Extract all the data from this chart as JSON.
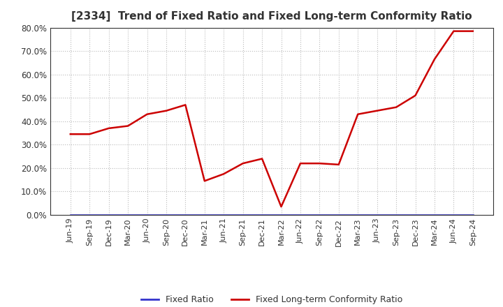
{
  "title": "[2334]  Trend of Fixed Ratio and Fixed Long-term Conformity Ratio",
  "x_labels": [
    "Jun-19",
    "Sep-19",
    "Dec-19",
    "Mar-20",
    "Jun-20",
    "Sep-20",
    "Dec-20",
    "Mar-21",
    "Jun-21",
    "Sep-21",
    "Dec-21",
    "Mar-22",
    "Jun-22",
    "Sep-22",
    "Dec-22",
    "Mar-23",
    "Jun-23",
    "Sep-23",
    "Dec-23",
    "Mar-24",
    "Jun-24",
    "Sep-24"
  ],
  "fixed_ratio": [
    0,
    0,
    0,
    0,
    0,
    0,
    0,
    0,
    0,
    0,
    0,
    0,
    0,
    0,
    0,
    0,
    0,
    0,
    0,
    0,
    0,
    0
  ],
  "fixed_lt_ratio": [
    0.345,
    0.345,
    0.37,
    0.38,
    0.43,
    0.445,
    0.47,
    0.145,
    0.175,
    0.22,
    0.24,
    0.035,
    0.22,
    0.22,
    0.215,
    0.43,
    0.445,
    0.46,
    0.51,
    0.665,
    0.785,
    0.785
  ],
  "ylim": [
    0.0,
    0.8
  ],
  "yticks": [
    0.0,
    0.1,
    0.2,
    0.3,
    0.4,
    0.5,
    0.6,
    0.7,
    0.8
  ],
  "fixed_ratio_color": "#3333cc",
  "fixed_lt_ratio_color": "#cc0000",
  "background_color": "#ffffff",
  "plot_bg_color": "#ffffff",
  "grid_color": "#bbbbbb",
  "title_fontsize": 11,
  "text_color": "#333333",
  "legend_labels": [
    "Fixed Ratio",
    "Fixed Long-term Conformity Ratio"
  ]
}
